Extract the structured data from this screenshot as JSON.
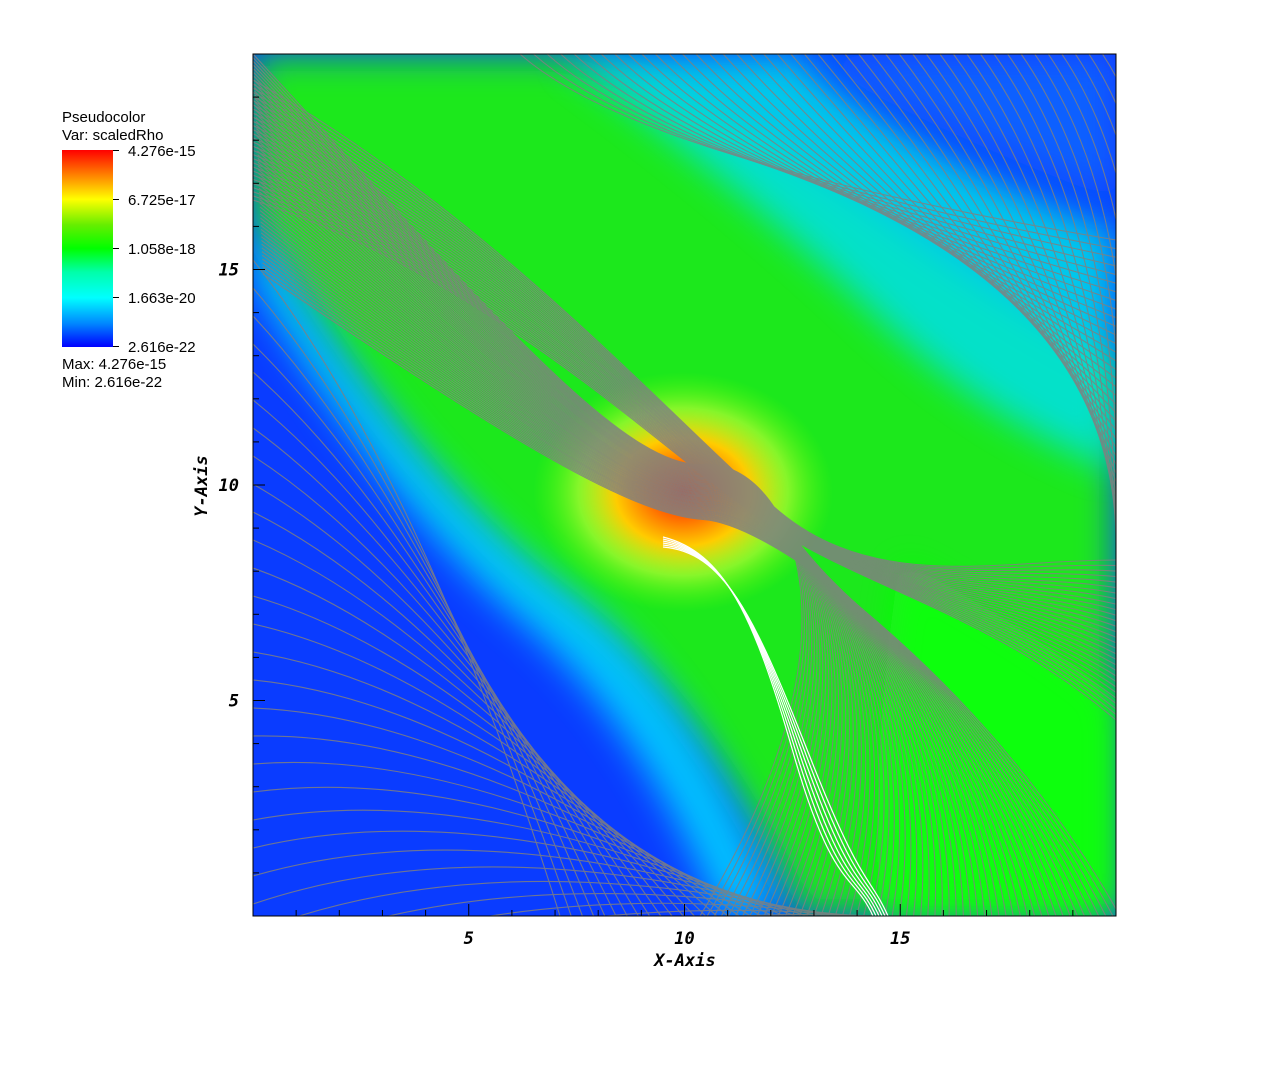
{
  "chart_data": {
    "type": "heatmap",
    "title": "",
    "plot_kind": "Pseudocolor",
    "variable_label": "Var: scaledRho",
    "xlabel": "X-Axis",
    "ylabel": "Y-Axis",
    "xlim": [
      0,
      20
    ],
    "ylim": [
      0,
      20
    ],
    "x_ticks": [
      5,
      10,
      15
    ],
    "y_ticks": [
      5,
      10,
      15
    ],
    "colorbar": {
      "scale": "log",
      "labels": [
        "4.276e-15",
        "6.725e-17",
        "1.058e-18",
        "1.663e-20",
        "2.616e-22"
      ],
      "colors": [
        "#ff0000",
        "#ffff00",
        "#00ff00",
        "#00ffff",
        "#0000ff"
      ]
    },
    "max_label": "Max: 4.276e-15",
    "min_label": "Min: 2.616e-22",
    "overlay": "streamlines",
    "streamline_color": "#808080",
    "peak_location": [
      10,
      10
    ],
    "peak_value": "4.276e-15"
  }
}
